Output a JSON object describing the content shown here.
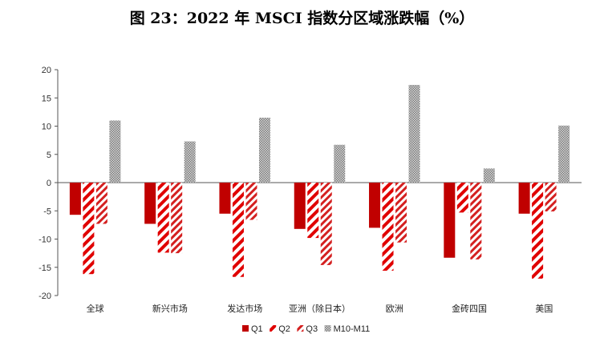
{
  "title": "图 23：2022 年 MSCI 指数分区域涨跌幅（%）",
  "colors": {
    "q1": "#c00000",
    "q2": "#e00000",
    "q3": "#d42020",
    "m10m11": "#9a9a9a"
  },
  "chart_data": {
    "type": "bar",
    "title": "图 23：2022 年 MSCI 指数分区域涨跌幅（%）",
    "xlabel": "",
    "ylabel": "",
    "ylim": [
      -20,
      20
    ],
    "yticks": [
      20,
      15,
      10,
      5,
      0,
      -5,
      -10,
      -15,
      -20
    ],
    "grid": false,
    "legend": "bottom",
    "categories": [
      "全球",
      "新兴市场",
      "发达市场",
      "亚洲（除日本）",
      "欧洲",
      "金砖四国",
      "美国"
    ],
    "series": [
      {
        "name": "Q1",
        "pattern": "solid",
        "values": [
          -5.7,
          -7.3,
          -5.5,
          -8.2,
          -8.0,
          -13.3,
          -5.5
        ]
      },
      {
        "name": "Q2",
        "pattern": "diagonal",
        "values": [
          -16.2,
          -12.4,
          -16.7,
          -9.8,
          -15.6,
          -5.3,
          -17.0
        ]
      },
      {
        "name": "Q3",
        "pattern": "diagonal-dense",
        "values": [
          -7.3,
          -12.5,
          -6.6,
          -14.6,
          -10.6,
          -13.6,
          -5.1
        ]
      },
      {
        "name": "M10-M11",
        "pattern": "dots",
        "values": [
          11.0,
          7.3,
          11.5,
          6.7,
          17.3,
          2.5,
          10.1
        ]
      }
    ]
  }
}
